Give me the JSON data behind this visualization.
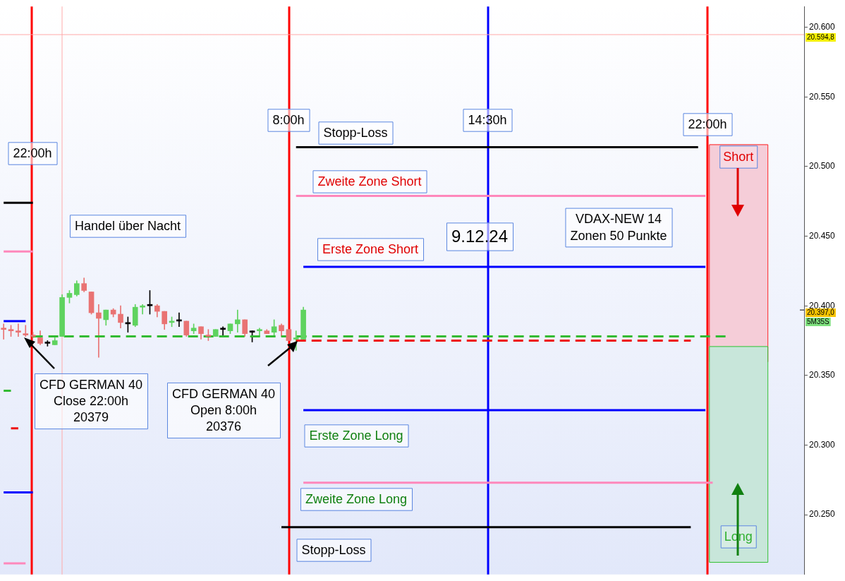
{
  "chart_data": {
    "type": "candlestick",
    "categories": [
      null,
      null,
      null,
      null,
      null,
      null,
      null,
      null,
      null,
      null,
      null,
      null,
      null,
      null,
      null,
      null,
      null,
      null,
      null,
      null,
      null,
      null,
      null,
      null,
      null,
      null,
      null,
      null,
      null,
      null,
      null,
      null,
      null,
      null,
      null,
      null,
      null,
      null,
      null,
      null,
      null,
      null,
      null,
      null,
      null,
      null,
      null,
      null,
      null,
      null,
      null,
      null,
      null,
      null,
      null,
      null,
      null,
      null,
      null,
      null,
      null,
      null,
      null,
      null,
      null,
      null,
      null,
      null,
      null,
      null,
      null,
      null,
      null,
      null,
      null,
      null,
      null,
      null,
      null,
      null,
      null,
      null,
      null,
      null,
      null,
      null,
      null,
      null,
      null,
      null,
      null,
      null,
      null,
      null,
      null,
      null,
      null,
      null,
      null,
      null,
      null,
      null,
      null,
      null,
      null,
      null,
      null,
      null,
      null,
      null
    ],
    "ohlc": [
      [
        20384,
        20387,
        20376,
        20383
      ],
      [
        20383,
        20386,
        20378,
        20382
      ],
      [
        20382,
        20387,
        20378,
        20381
      ],
      [
        20380,
        20386,
        20378,
        20379
      ],
      [
        20379,
        20381,
        20377,
        20378
      ],
      [
        20377,
        20382,
        20372,
        20373
      ],
      [
        20373,
        20375,
        20371,
        20373
      ],
      [
        20372,
        20377,
        20372,
        20375
      ],
      [
        20378,
        20408,
        20378,
        20406
      ],
      [
        20406,
        20411,
        20402,
        20409
      ],
      [
        20408,
        20418,
        20407,
        20416
      ],
      [
        20416,
        20420,
        20410,
        20411
      ],
      [
        20410,
        20410,
        20394,
        20395
      ],
      [
        20395,
        20401,
        20363,
        20391
      ],
      [
        20390,
        20397,
        20386,
        20397
      ],
      [
        20397,
        20398,
        20392,
        20394
      ],
      [
        20394,
        20400,
        20384,
        20388
      ],
      [
        20387,
        20392,
        20381,
        20387
      ],
      [
        20386,
        20401,
        20385,
        20399
      ],
      [
        20399,
        20401,
        20394,
        20400
      ],
      [
        20400,
        20411,
        20394,
        20400
      ],
      [
        20400,
        20401,
        20392,
        20396
      ],
      [
        20396,
        20396,
        20383,
        20387
      ],
      [
        20388,
        20392,
        20385,
        20389
      ],
      [
        20389,
        20395,
        20385,
        20389
      ],
      [
        20389,
        20389,
        20378,
        20379
      ],
      [
        20382,
        20387,
        20380,
        20384
      ],
      [
        20385,
        20385,
        20376,
        20380
      ],
      [
        20379,
        20383,
        20375,
        20378
      ],
      [
        20378,
        20383,
        20378,
        20383
      ],
      [
        20383,
        20385,
        20378,
        20383
      ],
      [
        20382,
        20387,
        20380,
        20387
      ],
      [
        20387,
        20397,
        20381,
        20390
      ],
      [
        20390,
        20390,
        20378,
        20380
      ],
      [
        20381,
        20382,
        20374,
        20381
      ],
      [
        20382,
        20384,
        20378,
        20383
      ],
      [
        20382,
        20383,
        20380,
        20380
      ],
      [
        20381,
        20390,
        20378,
        20385
      ],
      [
        20386,
        20387,
        20378,
        20382
      ],
      [
        20383,
        20383,
        20375,
        20375
      ],
      [
        20376,
        20382,
        20368,
        20377
      ],
      [
        20376,
        20399,
        20376,
        20397
      ],
      null,
      null,
      null,
      null,
      null,
      null,
      null,
      null,
      null,
      null,
      null,
      null,
      null,
      null,
      null,
      null,
      null,
      null,
      null,
      null,
      null,
      null,
      null,
      null,
      null,
      null,
      null,
      null,
      null,
      null,
      null,
      null,
      null,
      null,
      null,
      null,
      null,
      null,
      null,
      null,
      null,
      null,
      null,
      null,
      null,
      null,
      null,
      null,
      null,
      null,
      null,
      null,
      null,
      null,
      null,
      null,
      null,
      null,
      null,
      null,
      null,
      null,
      null,
      null,
      null,
      null,
      null,
      null
    ],
    "colors": [
      "#e97373",
      "#e97373",
      "#e97373",
      "#e97373",
      "#e97373",
      "#e97373",
      "#000000",
      "#5fd35f",
      "#5fd35f",
      "#5fd35f",
      "#5fd35f",
      "#e97373",
      "#e97373",
      "#e97373",
      "#5fd35f",
      "#e97373",
      "#e97373",
      "#000000",
      "#5fd35f",
      "#5fd35f",
      "#000000",
      "#e97373",
      "#e97373",
      "#5fd35f",
      "#000000",
      "#e97373",
      "#5fd35f",
      "#e97373",
      "#e97373",
      "#5fd35f",
      "#000000",
      "#5fd35f",
      "#5fd35f",
      "#e97373",
      "#000000",
      "#5fd35f",
      "#e97373",
      "#5fd35f",
      "#e97373",
      "#e97373",
      "#5fd35f",
      "#5fd35f",
      null,
      null,
      null,
      null,
      null,
      null,
      null,
      null,
      null,
      null,
      null,
      null,
      null,
      null,
      null,
      null,
      null,
      null,
      null,
      null,
      null,
      null,
      null,
      null,
      null,
      null,
      null,
      null,
      null,
      null,
      null,
      null,
      null,
      null,
      null,
      null,
      null,
      null,
      null,
      null,
      null,
      null,
      null,
      null,
      null,
      null,
      null,
      null,
      null,
      null,
      null,
      null,
      null,
      null,
      null,
      null,
      null,
      null,
      null,
      null,
      null,
      null,
      null,
      null,
      null,
      null,
      null,
      null
    ],
    "series": [
      {
        "type": "line",
        "color": "#000000",
        "values": [
          null,
          null,
          null,
          null,
          null,
          null,
          null,
          null,
          null,
          null,
          null,
          null,
          null,
          null,
          null,
          null,
          null,
          null,
          null,
          null,
          null,
          null,
          null,
          null,
          null,
          null,
          null,
          null,
          null,
          null,
          null,
          null,
          null,
          null,
          null,
          null,
          null,
          null,
          null,
          null,
          20514,
          20514,
          20514,
          20514,
          20514,
          20514,
          20514,
          20514,
          20514,
          20514,
          20514,
          20514,
          20514,
          20514,
          20514,
          20514,
          20514,
          20514,
          20514,
          20514,
          20514,
          20514,
          20514,
          20514,
          20514,
          20514,
          20514,
          20514,
          20514,
          20514,
          20514,
          20514,
          20514,
          20514,
          20514,
          20514,
          20514,
          20514,
          20514,
          20514,
          20514,
          20514,
          20514,
          20514,
          20514,
          20514,
          20514,
          20514,
          20514,
          20514,
          20514,
          20514,
          20514,
          20514,
          20514,
          20514,
          null,
          null,
          null,
          null,
          null,
          null,
          null,
          null,
          null,
          null,
          null,
          null,
          null,
          null
        ]
      },
      {
        "type": "line",
        "color": "#ff88bb",
        "values": [
          null,
          null,
          null,
          null,
          null,
          null,
          null,
          null,
          null,
          null,
          null,
          null,
          null,
          null,
          null,
          null,
          null,
          null,
          null,
          null,
          null,
          null,
          null,
          null,
          null,
          null,
          null,
          null,
          null,
          null,
          null,
          null,
          null,
          null,
          null,
          null,
          null,
          null,
          null,
          null,
          20479,
          20479,
          20479,
          20479,
          20479,
          20479,
          20479,
          20479,
          20479,
          20479,
          20479,
          20479,
          20479,
          20479,
          20479,
          20479,
          20479,
          20479,
          20479,
          20479,
          20479,
          20479,
          20479,
          20479,
          20479,
          20479,
          20479,
          20479,
          20479,
          20479,
          20479,
          20479,
          20479,
          20479,
          20479,
          20479,
          20479,
          20479,
          20479,
          20479,
          20479,
          20479,
          20479,
          20479,
          20479,
          20479,
          20479,
          20479,
          20479,
          20479,
          20479,
          20479,
          20479,
          20479,
          20479,
          20479,
          20479,
          null,
          null,
          null,
          null,
          null,
          null,
          null,
          null,
          null,
          null,
          null,
          null,
          null
        ]
      },
      {
        "type": "line",
        "color": "#0000ff",
        "values": [
          null,
          null,
          null,
          null,
          null,
          null,
          null,
          null,
          null,
          null,
          null,
          null,
          null,
          null,
          null,
          null,
          null,
          null,
          null,
          null,
          null,
          null,
          null,
          null,
          null,
          null,
          null,
          null,
          null,
          null,
          null,
          null,
          null,
          null,
          null,
          null,
          null,
          null,
          null,
          null,
          null,
          20428,
          20428,
          20428,
          20428,
          20428,
          20428,
          20428,
          20428,
          20428,
          20428,
          20428,
          20428,
          20428,
          20428,
          20428,
          20428,
          20428,
          20428,
          20428,
          20428,
          20428,
          20428,
          20428,
          20428,
          20428,
          20428,
          20428,
          20428,
          20428,
          20428,
          20428,
          20428,
          20428,
          20428,
          20428,
          20428,
          20428,
          20428,
          20428,
          20428,
          20428,
          20428,
          20428,
          20428,
          20428,
          20428,
          20428,
          20428,
          20428,
          20428,
          20428,
          20428,
          20428,
          20428,
          20428,
          20428,
          null,
          null,
          null,
          null,
          null,
          null,
          null,
          null,
          null,
          null,
          null,
          null,
          null
        ]
      },
      {
        "type": "line",
        "color": "#0000ff",
        "values": [
          null,
          null,
          null,
          null,
          null,
          null,
          null,
          null,
          null,
          null,
          null,
          null,
          null,
          null,
          null,
          null,
          null,
          null,
          null,
          null,
          null,
          null,
          null,
          null,
          null,
          null,
          null,
          null,
          null,
          null,
          null,
          null,
          null,
          null,
          null,
          null,
          null,
          null,
          null,
          null,
          null,
          20325,
          20325,
          20325,
          20325,
          20325,
          20325,
          20325,
          20325,
          20325,
          20325,
          20325,
          20325,
          20325,
          20325,
          20325,
          20325,
          20325,
          20325,
          20325,
          20325,
          20325,
          20325,
          20325,
          20325,
          20325,
          20325,
          20325,
          20325,
          20325,
          20325,
          20325,
          20325,
          20325,
          20325,
          20325,
          20325,
          20325,
          20325,
          20325,
          20325,
          20325,
          20325,
          20325,
          20325,
          20325,
          20325,
          20325,
          20325,
          20325,
          20325,
          20325,
          20325,
          20325,
          20325,
          20325,
          20325,
          null,
          null,
          null,
          null,
          null,
          null,
          null,
          null,
          null,
          null,
          null,
          null,
          null
        ]
      },
      {
        "type": "line",
        "color": "#ff88bb",
        "values": [
          null,
          null,
          null,
          null,
          null,
          null,
          null,
          null,
          null,
          null,
          null,
          null,
          null,
          null,
          null,
          null,
          null,
          null,
          null,
          null,
          null,
          null,
          null,
          null,
          null,
          null,
          null,
          null,
          null,
          null,
          null,
          null,
          null,
          null,
          null,
          null,
          null,
          null,
          null,
          null,
          null,
          20273,
          20273,
          20273,
          20273,
          20273,
          20273,
          20273,
          20273,
          20273,
          20273,
          20273,
          20273,
          20273,
          20273,
          20273,
          20273,
          20273,
          20273,
          20273,
          20273,
          20273,
          20273,
          20273,
          20273,
          20273,
          20273,
          20273,
          20273,
          20273,
          20273,
          20273,
          20273,
          20273,
          20273,
          20273,
          20273,
          20273,
          20273,
          20273,
          20273,
          20273,
          20273,
          20273,
          20273,
          20273,
          20273,
          20273,
          20273,
          20273,
          20273,
          20273,
          20273,
          20273,
          20273,
          20273,
          20273,
          20273,
          null,
          null,
          null,
          null,
          null,
          null,
          null,
          null,
          null,
          null,
          null,
          null
        ]
      },
      {
        "type": "line",
        "color": "#000000",
        "values": [
          null,
          null,
          null,
          null,
          null,
          null,
          null,
          null,
          null,
          null,
          null,
          null,
          null,
          null,
          null,
          null,
          null,
          null,
          null,
          null,
          null,
          null,
          null,
          null,
          null,
          null,
          null,
          null,
          null,
          null,
          null,
          null,
          null,
          null,
          null,
          null,
          null,
          null,
          20241,
          20241,
          20241,
          20241,
          20241,
          20241,
          20241,
          20241,
          20241,
          20241,
          20241,
          20241,
          20241,
          20241,
          20241,
          20241,
          20241,
          20241,
          20241,
          20241,
          20241,
          20241,
          20241,
          20241,
          20241,
          20241,
          20241,
          20241,
          20241,
          20241,
          20241,
          20241,
          20241,
          20241,
          20241,
          20241,
          20241,
          20241,
          20241,
          20241,
          20241,
          20241,
          20241,
          20241,
          20241,
          20241,
          20241,
          20241,
          20241,
          20241,
          20241,
          20241,
          20241,
          20241,
          20241,
          20241,
          20241,
          null,
          null,
          null,
          null,
          null,
          null,
          null,
          null,
          null,
          null,
          null,
          null,
          null,
          null,
          null
        ]
      },
      {
        "type": "line",
        "color": "#33bb33",
        "line_style": "dashed",
        "values": [
          null,
          null,
          null,
          null,
          20378,
          20378,
          20378,
          20378,
          20378,
          20378,
          20378,
          20378,
          20378,
          20378,
          20378,
          20378,
          20378,
          20378,
          20378,
          20378,
          20378,
          20378,
          20378,
          20378,
          20378,
          20378,
          20378,
          20378,
          20378,
          20378,
          20378,
          20378,
          20378,
          20378,
          20378,
          20378,
          20378,
          20378,
          20378,
          20378,
          20378,
          20378,
          20378,
          20378,
          20378,
          20378,
          20378,
          20378,
          20378,
          20378,
          20378,
          20378,
          20378,
          20378,
          20378,
          20378,
          20378,
          20378,
          20378,
          20378,
          20378,
          20378,
          20378,
          20378,
          20378,
          20378,
          20378,
          20378,
          20378,
          20378,
          20378,
          20378,
          20378,
          20378,
          20378,
          20378,
          20378,
          20378,
          20378,
          20378,
          20378,
          20378,
          20378,
          20378,
          20378,
          20378,
          20378,
          20378,
          20378,
          20378,
          20378,
          20378,
          20378,
          20378,
          20378,
          20378,
          20378,
          20378,
          20378,
          20378,
          null,
          null,
          null,
          null,
          null,
          null,
          null,
          null,
          null,
          null
        ]
      },
      {
        "type": "line",
        "color": "#ee1111",
        "line_style": "dashed",
        "values": [
          null,
          null,
          null,
          null,
          null,
          null,
          null,
          null,
          null,
          null,
          null,
          null,
          null,
          null,
          null,
          null,
          null,
          null,
          null,
          null,
          null,
          null,
          null,
          null,
          null,
          null,
          null,
          null,
          null,
          null,
          null,
          null,
          null,
          null,
          null,
          null,
          null,
          null,
          null,
          null,
          20375,
          20375,
          20375,
          20375,
          20375,
          20375,
          20375,
          20375,
          20375,
          20375,
          20375,
          20375,
          20375,
          20375,
          20375,
          20375,
          20375,
          20375,
          20375,
          20375,
          20375,
          20375,
          20375,
          20375,
          20375,
          20375,
          20375,
          20375,
          20375,
          20375,
          20375,
          20375,
          20375,
          20375,
          20375,
          20375,
          20375,
          20375,
          20375,
          20375,
          20375,
          20375,
          20375,
          20375,
          20375,
          20375,
          20375,
          20375,
          20375,
          20375,
          20375,
          20375,
          20375,
          20375,
          20375,
          null,
          null,
          null,
          null,
          null,
          null,
          null,
          null,
          null,
          null,
          null,
          null,
          null,
          null,
          null
        ]
      },
      {
        "type": "line",
        "color": "#000000",
        "values": [
          20474,
          20474,
          20474,
          20474,
          20474,
          null,
          null,
          null,
          null,
          null,
          null,
          null,
          null,
          null,
          null,
          null,
          null,
          null,
          null,
          null,
          null,
          null,
          null,
          null,
          null,
          null,
          null,
          null,
          null,
          null,
          null,
          null,
          null,
          null,
          null,
          null,
          null,
          null,
          null,
          null,
          null,
          null,
          null,
          null,
          null,
          null,
          null,
          null,
          null,
          null,
          null,
          null,
          null,
          null,
          null,
          null,
          null,
          null,
          null,
          null,
          null,
          null,
          null,
          null,
          null,
          null,
          null,
          null,
          null,
          null,
          null,
          null,
          null,
          null,
          null,
          null,
          null,
          null,
          null,
          null,
          null,
          null,
          null,
          null,
          null,
          null,
          null,
          null,
          null,
          null,
          null,
          null,
          null,
          null,
          null,
          null,
          null,
          null,
          null,
          null,
          null,
          null,
          null,
          null,
          null,
          null,
          null,
          null,
          null,
          null
        ]
      },
      {
        "type": "line",
        "color": "#ff88bb",
        "values": [
          20439,
          20439,
          20439,
          20439,
          20439,
          null,
          null,
          null,
          null,
          null,
          null,
          null,
          null,
          null,
          null,
          null,
          null,
          null,
          null,
          null,
          null,
          null,
          null,
          null,
          null,
          null,
          null,
          null,
          null,
          null,
          null,
          null,
          null,
          null,
          null,
          null,
          null,
          null,
          null,
          null,
          null,
          null,
          null,
          null,
          null,
          null,
          null,
          null,
          null,
          null,
          null,
          null,
          null,
          null,
          null,
          null,
          null,
          null,
          null,
          null,
          null,
          null,
          null,
          null,
          null,
          null,
          null,
          null,
          null,
          null,
          null,
          null,
          null,
          null,
          null,
          null,
          null,
          null,
          null,
          null,
          null,
          null,
          null,
          null,
          null,
          null,
          null,
          null,
          null,
          null,
          null,
          null,
          null,
          null,
          null,
          null,
          null,
          null,
          null,
          null,
          null,
          null,
          null,
          null,
          null,
          null,
          null,
          null,
          null,
          null
        ]
      },
      {
        "type": "line",
        "color": "#0000ff",
        "values": [
          20389,
          20389,
          20389,
          20389,
          null,
          null,
          null,
          null,
          null,
          null,
          null,
          null,
          null,
          null,
          null,
          null,
          null,
          null,
          null,
          null,
          null,
          null,
          null,
          null,
          null,
          null,
          null,
          null,
          null,
          null,
          null,
          null,
          null,
          null,
          null,
          null,
          null,
          null,
          null,
          null,
          null,
          null,
          null,
          null,
          null,
          null,
          null,
          null,
          null,
          null,
          null,
          null,
          null,
          null,
          null,
          null,
          null,
          null,
          null,
          null,
          null,
          null,
          null,
          null,
          null,
          null,
          null,
          null,
          null,
          null,
          null,
          null,
          null,
          null,
          null,
          null,
          null,
          null,
          null,
          null,
          null,
          null,
          null,
          null,
          null,
          null,
          null,
          null,
          null,
          null,
          null,
          null,
          null,
          null,
          null,
          null,
          null,
          null,
          null,
          null,
          null,
          null,
          null,
          null,
          null,
          null,
          null,
          null,
          null,
          null
        ]
      },
      {
        "type": "line",
        "color": "#33bb33",
        "values": [
          20339,
          20339,
          null,
          null,
          null,
          null,
          null,
          null,
          null,
          null,
          null,
          null,
          null,
          null,
          null,
          null,
          null,
          null,
          null,
          null,
          null,
          null,
          null,
          null,
          null,
          null,
          null,
          null,
          null,
          null,
          null,
          null,
          null,
          null,
          null,
          null,
          null,
          null,
          null,
          null,
          null,
          null,
          null,
          null,
          null,
          null,
          null,
          null,
          null,
          null,
          null,
          null,
          null,
          null,
          null,
          null,
          null,
          null,
          null,
          null,
          null,
          null,
          null,
          null,
          null,
          null,
          null,
          null,
          null,
          null,
          null,
          null,
          null,
          null,
          null,
          null,
          null,
          null,
          null,
          null,
          null,
          null,
          null,
          null,
          null,
          null,
          null,
          null,
          null,
          null,
          null,
          null,
          null,
          null,
          null,
          null,
          null,
          null,
          null,
          null,
          null,
          null,
          null,
          null,
          null,
          null,
          null,
          null,
          null,
          null
        ]
      },
      {
        "type": "line",
        "color": "#ee1111",
        "values": [
          null,
          20312,
          20312,
          null,
          null,
          null,
          null,
          null,
          null,
          null,
          null,
          null,
          null,
          null,
          null,
          null,
          null,
          null,
          null,
          null,
          null,
          null,
          null,
          null,
          null,
          null,
          null,
          null,
          null,
          null,
          null,
          null,
          null,
          null,
          null,
          null,
          null,
          null,
          null,
          null,
          null,
          null,
          null,
          null,
          null,
          null,
          null,
          null,
          null,
          null,
          null,
          null,
          null,
          null,
          null,
          null,
          null,
          null,
          null,
          null,
          null,
          null,
          null,
          null,
          null,
          null,
          null,
          null,
          null,
          null,
          null,
          null,
          null,
          null,
          null,
          null,
          null,
          null,
          null,
          null,
          null,
          null,
          null,
          null,
          null,
          null,
          null,
          null,
          null,
          null,
          null,
          null,
          null,
          null,
          null,
          null,
          null,
          null,
          null,
          null,
          null,
          null,
          null,
          null,
          null,
          null,
          null,
          null,
          null,
          null
        ]
      },
      {
        "type": "line",
        "color": "#0000ff",
        "values": [
          20266,
          20266,
          20266,
          20266,
          20266,
          null,
          null,
          null,
          null,
          null,
          null,
          null,
          null,
          null,
          null,
          null,
          null,
          null,
          null,
          null,
          null,
          null,
          null,
          null,
          null,
          null,
          null,
          null,
          null,
          null,
          null,
          null,
          null,
          null,
          null,
          null,
          null,
          null,
          null,
          null,
          null,
          null,
          null,
          null,
          null,
          null,
          null,
          null,
          null,
          null,
          null,
          null,
          null,
          null,
          null,
          null,
          null,
          null,
          null,
          null,
          null,
          null,
          null,
          null,
          null,
          null,
          null,
          null,
          null,
          null,
          null,
          null,
          null,
          null,
          null,
          null,
          null,
          null,
          null,
          null,
          null,
          null,
          null,
          null,
          null,
          null,
          null,
          null,
          null,
          null,
          null,
          null,
          null,
          null,
          null,
          null,
          null,
          null,
          null,
          null,
          null,
          null,
          null,
          null,
          null,
          null,
          null,
          null,
          null,
          null
        ]
      },
      {
        "type": "line",
        "color": "#ff88bb",
        "values": [
          20215,
          20215,
          20215,
          20215,
          null,
          null,
          null,
          null,
          null,
          null,
          null,
          null,
          null,
          null,
          null,
          null,
          null,
          null,
          null,
          null,
          null,
          null,
          null,
          null,
          null,
          null,
          null,
          null,
          null,
          null,
          null,
          null,
          null,
          null,
          null,
          null,
          null,
          null,
          null,
          null,
          null,
          null,
          null,
          null,
          null,
          null,
          null,
          null,
          null,
          null,
          null,
          null,
          null,
          null,
          null,
          null,
          null,
          null,
          null,
          null,
          null,
          null,
          null,
          null,
          null,
          null,
          null,
          null,
          null,
          null,
          null,
          null,
          null,
          null,
          null,
          null,
          null,
          null,
          null,
          null,
          null,
          null,
          null,
          null,
          null,
          null,
          null,
          null,
          null,
          null,
          null,
          null,
          null,
          null,
          null,
          null,
          null,
          null,
          null,
          null,
          null,
          null,
          null,
          null,
          null,
          null,
          null,
          null,
          null,
          null
        ]
      }
    ],
    "ylim": [
      20207,
      20615
    ],
    "yticks": [
      {
        "value": 20250,
        "label": "20.250"
      },
      {
        "value": 20300,
        "label": "20.300"
      },
      {
        "value": 20350,
        "label": "20.350"
      },
      {
        "value": 20400,
        "label": "20.400"
      },
      {
        "value": 20450,
        "label": "20.450"
      },
      {
        "value": 20500,
        "label": "20.500"
      },
      {
        "value": 20550,
        "label": "20.550"
      },
      {
        "value": 20600,
        "label": "20.600"
      }
    ],
    "tick_labels": "y",
    "legend": false,
    "grid": false,
    "marker": "none",
    "line_style": "solid",
    "ref_lines": [
      {
        "axis": "y",
        "value": 20594.8,
        "label": "20.594,8",
        "color": "#ffaaaa"
      },
      {
        "axis": "y",
        "value": 20397,
        "label": "20.397,0"
      }
    ],
    "bands": [
      {
        "axis": "y",
        "from": 20360,
        "to": 20516,
        "label": "Short",
        "color": "#f5cdd8"
      },
      {
        "axis": "y",
        "from": 20216,
        "to": 20371,
        "label": "Long",
        "color": "#c8e6da"
      }
    ],
    "annotations": [
      "Stopp-Loss",
      "Zweite Zone Short",
      "Erste Zone Short",
      "Erste Zone Long",
      "Zweite Zone Long",
      "Stopp-Loss",
      "Handel über Nacht",
      "CFD GERMAN 40\nClose 22:00h\n20379",
      "CFD GERMAN 40\nOpen 8:00h\n20376",
      "9.12.24",
      "VDAX-NEW 14\nZonen 50 Punkte",
      "22:00h",
      "8:00h",
      "14:30h",
      "22:00h",
      "5M35S"
    ]
  }
}
